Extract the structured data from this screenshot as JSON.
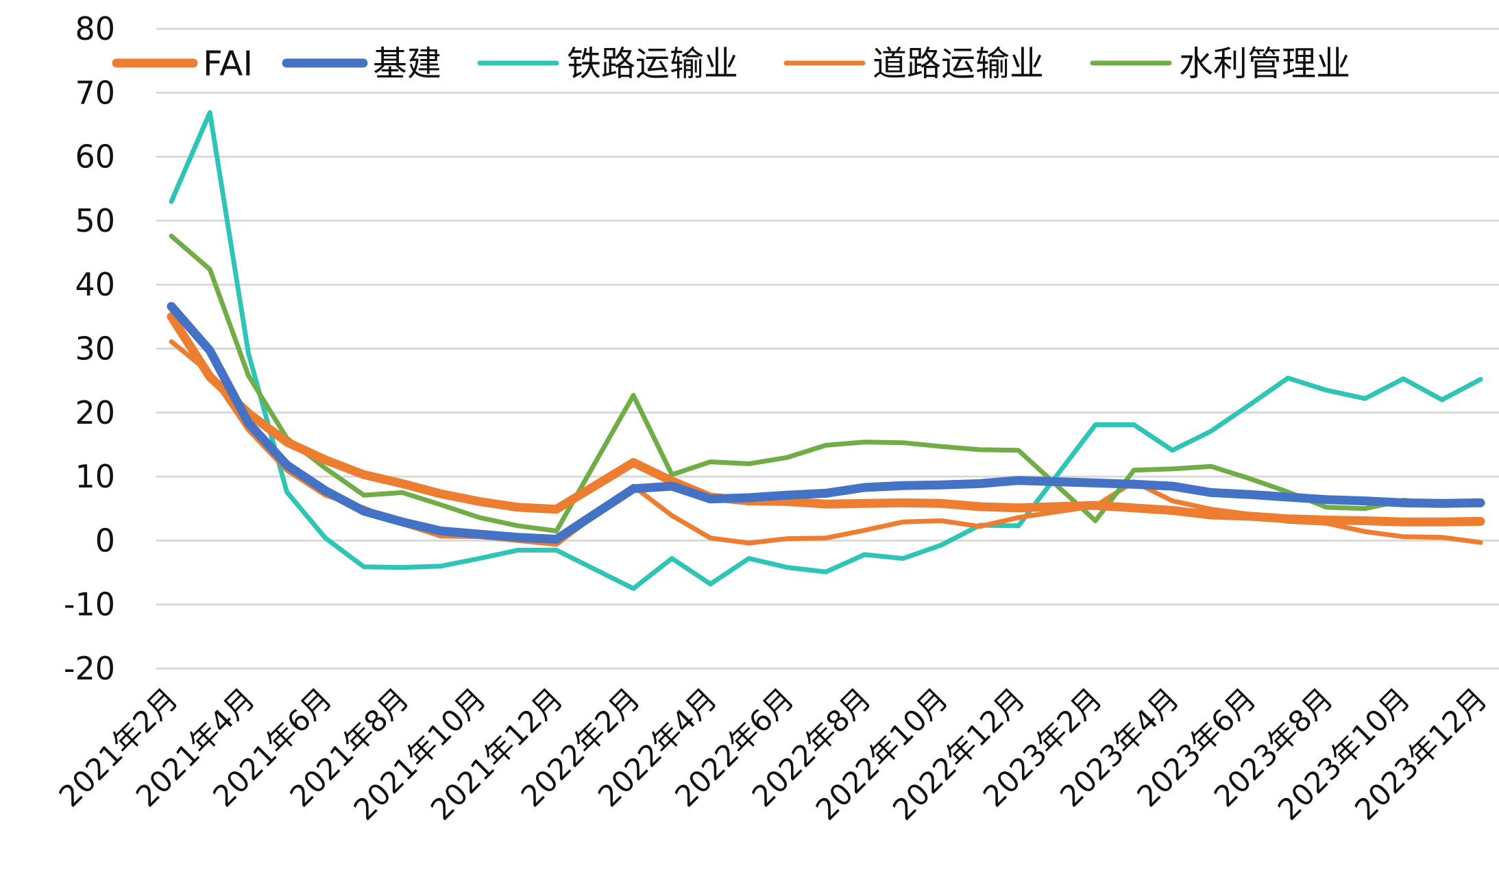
{
  "chart_data": {
    "type": "line",
    "title": "",
    "xlabel": "",
    "ylabel": "",
    "ylim": [
      -20,
      80
    ],
    "yticks": [
      -20,
      -10,
      0,
      10,
      20,
      30,
      40,
      50,
      60,
      70,
      80
    ],
    "grid": "horizontal",
    "legend_position": "top",
    "x": [
      "2021年2月",
      "2021年3月",
      "2021年4月",
      "2021年5月",
      "2021年6月",
      "2021年7月",
      "2021年8月",
      "2021年9月",
      "2021年10月",
      "2021年11月",
      "2021年12月",
      "2022年1月",
      "2022年2月",
      "2022年3月",
      "2022年4月",
      "2022年5月",
      "2022年6月",
      "2022年7月",
      "2022年8月",
      "2022年9月",
      "2022年10月",
      "2022年11月",
      "2022年12月",
      "2023年1月",
      "2023年2月",
      "2023年3月",
      "2023年4月",
      "2023年5月",
      "2023年6月",
      "2023年7月",
      "2023年8月",
      "2023年9月",
      "2023年10月",
      "2023年11月",
      "2023年12月"
    ],
    "x_tick_labels": [
      "2021年2月",
      "2021年4月",
      "2021年6月",
      "2021年8月",
      "2021年10月",
      "2021年12月",
      "2022年2月",
      "2022年4月",
      "2022年6月",
      "2022年8月",
      "2022年10月",
      "2022年12月",
      "2023年2月",
      "2023年4月",
      "2023年6月",
      "2023年8月",
      "2023年10月",
      "2023年12月"
    ],
    "series": [
      {
        "name": "FAI",
        "color": "#ED7D31",
        "width": 13,
        "values": [
          35.0,
          25.6,
          19.9,
          15.4,
          12.6,
          10.3,
          8.9,
          7.3,
          6.1,
          5.2,
          4.9,
          null,
          12.2,
          9.3,
          6.8,
          6.2,
          6.1,
          5.7,
          5.8,
          5.9,
          5.8,
          5.3,
          5.1,
          null,
          5.5,
          5.1,
          4.7,
          4.0,
          3.8,
          3.4,
          3.2,
          3.1,
          2.9,
          2.9,
          3.0
        ]
      },
      {
        "name": "基建",
        "color": "#4472C4",
        "width": 13,
        "values": [
          36.6,
          29.7,
          18.4,
          11.8,
          7.8,
          4.6,
          2.9,
          1.5,
          1.0,
          0.5,
          0.2,
          null,
          8.1,
          8.5,
          6.5,
          6.7,
          7.1,
          7.4,
          8.3,
          8.6,
          8.7,
          8.9,
          9.4,
          null,
          9.0,
          8.8,
          8.5,
          7.5,
          7.2,
          6.8,
          6.4,
          6.2,
          5.9,
          5.8,
          5.9
        ]
      },
      {
        "name": "铁路运输业",
        "color": "#2EC4B6",
        "width": 7,
        "values": [
          53.0,
          66.9,
          29.3,
          7.6,
          0.4,
          -4.1,
          -4.2,
          -4.0,
          -2.8,
          -1.5,
          -1.5,
          null,
          -7.5,
          -2.8,
          -6.8,
          -2.8,
          -4.2,
          -4.9,
          -2.2,
          -2.8,
          -0.7,
          2.4,
          2.3,
          null,
          18.1,
          18.1,
          14.1,
          17.1,
          21.2,
          25.4,
          23.5,
          22.2,
          25.3,
          22.0,
          25.2
        ]
      },
      {
        "name": "道路运输业",
        "color": "#ED7D31",
        "width": 7,
        "values": [
          31.1,
          26.2,
          17.3,
          11.0,
          7.1,
          5.1,
          2.6,
          0.7,
          0.6,
          0.0,
          -0.6,
          null,
          8.5,
          3.9,
          0.4,
          -0.4,
          0.3,
          0.4,
          1.6,
          2.9,
          3.1,
          2.2,
          3.6,
          null,
          5.4,
          9.2,
          6.2,
          4.9,
          4.1,
          3.0,
          2.7,
          1.4,
          0.6,
          0.5,
          -0.3
        ]
      },
      {
        "name": "水利管理业",
        "color": "#70AD47",
        "width": 7,
        "values": [
          47.6,
          42.4,
          25.8,
          16.0,
          11.3,
          7.1,
          7.5,
          5.6,
          3.6,
          2.3,
          1.5,
          null,
          22.7,
          10.3,
          12.3,
          12.0,
          13.0,
          14.9,
          15.4,
          15.3,
          14.7,
          14.2,
          14.1,
          null,
          3.1,
          11.0,
          11.2,
          11.6,
          9.7,
          7.6,
          5.2,
          5.0,
          6.3,
          5.8,
          5.6
        ]
      }
    ]
  }
}
